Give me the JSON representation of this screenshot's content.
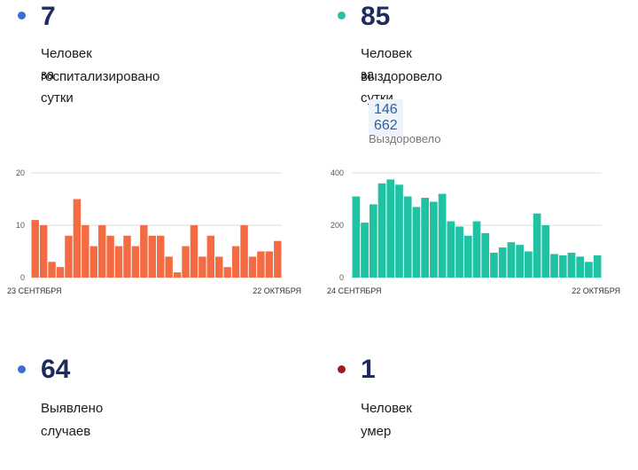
{
  "panels": {
    "hospitalized": {
      "value": "7",
      "label_line1": "Человек госпитализировано",
      "label_line2": "за сутки",
      "dot_color": "#3b6ecf"
    },
    "recovered": {
      "value": "85",
      "label_line1": "Человек выздоровело",
      "label_line2": "за сутки",
      "dot_color": "#2bbfa2",
      "total_value": "146 662",
      "total_label": "Выздоровело"
    },
    "cases": {
      "value": "64",
      "label_line1": "Выявлено случаев",
      "dot_color": "#3b6ecf"
    },
    "deaths": {
      "value": "1",
      "label_line1": "Человек умер",
      "dot_color": "#a11a1a"
    }
  },
  "chart_data": [
    {
      "type": "bar",
      "color": "#f26b43",
      "ylim": [
        0,
        20
      ],
      "yticks": [
        "0",
        "10",
        "20"
      ],
      "xlabel_start": "23 СЕНТЯБРЯ",
      "xlabel_end": "22 ОКТЯБРЯ",
      "values": [
        11,
        10,
        3,
        2,
        8,
        15,
        10,
        6,
        10,
        8,
        6,
        8,
        6,
        10,
        8,
        8,
        4,
        1,
        6,
        10,
        4,
        8,
        4,
        2,
        6,
        10,
        4,
        5,
        5,
        7
      ]
    },
    {
      "type": "bar",
      "color": "#1fc3a3",
      "ylim": [
        0,
        400
      ],
      "yticks": [
        "0",
        "200",
        "400"
      ],
      "xlabel_start": "24 СЕНТЯБРЯ",
      "xlabel_end": "22 ОКТЯБРЯ",
      "values": [
        310,
        210,
        280,
        360,
        375,
        355,
        310,
        270,
        305,
        290,
        320,
        215,
        195,
        160,
        215,
        170,
        95,
        115,
        135,
        125,
        100,
        245,
        200,
        90,
        85,
        95,
        80,
        60,
        85
      ]
    }
  ]
}
